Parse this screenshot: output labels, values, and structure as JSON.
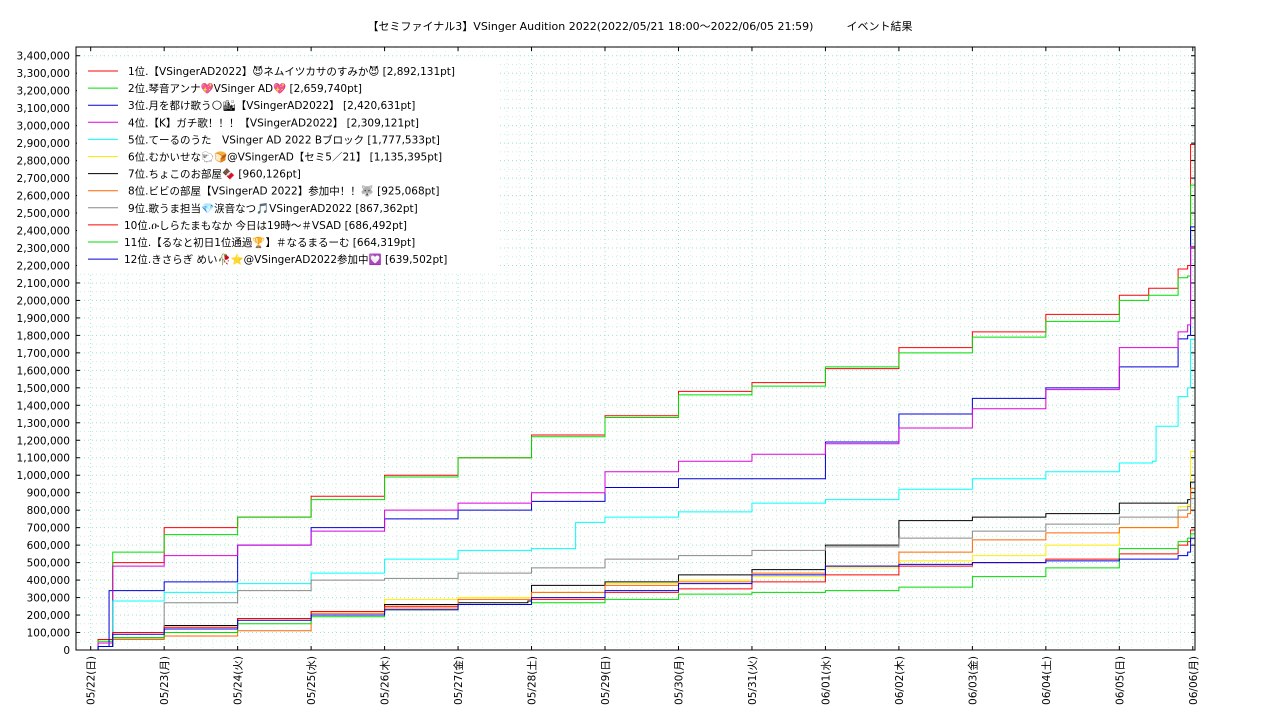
{
  "title": "【セミファイナル3】VSinger Audition 2022(2022/05/21 18:00～2022/06/05 21:59)　　　イベント結果",
  "chart_data": {
    "type": "line",
    "title": "【セミファイナル3】VSinger Audition 2022(2022/05/21 18:00～2022/06/05 21:59)　　　イベント結果",
    "xlabel": "",
    "ylabel": "",
    "ylim": [
      0,
      3450000
    ],
    "xlim": [
      -0.2,
      15.03
    ],
    "grid": true,
    "legend_position": "top-left",
    "x_ticks": [
      "05/22(日)",
      "05/23(月)",
      "05/24(火)",
      "05/25(水)",
      "05/26(木)",
      "05/27(金)",
      "05/28(土)",
      "05/29(日)",
      "05/30(月)",
      "05/31(火)",
      "06/01(水)",
      "06/02(木)",
      "06/03(金)",
      "06/04(土)",
      "06/05(日)",
      "06/06(月)"
    ],
    "y_ticks": [
      "0",
      "100,000",
      "200,000",
      "300,000",
      "400,000",
      "500,000",
      "600,000",
      "700,000",
      "800,000",
      "900,000",
      "1,000,000",
      "1,100,000",
      "1,200,000",
      "1,300,000",
      "1,400,000",
      "1,500,000",
      "1,600,000",
      "1,700,000",
      "1,800,000",
      "1,900,000",
      "2,000,000",
      "2,100,000",
      "2,200,000",
      "2,300,000",
      "2,400,000",
      "2,500,000",
      "2,600,000",
      "2,700,000",
      "2,800,000",
      "2,900,000",
      "3,000,000",
      "3,100,000",
      "3,200,000",
      "3,300,000",
      "3,400,000"
    ],
    "series": [
      {
        "name": "1位.【VSingerAD2022】😈ネムイツカサのすみか😈 [2,892,131pt]",
        "color": "#ff0000",
        "x": [
          -0.2,
          0.1,
          0.3,
          1,
          2,
          3,
          4,
          5,
          6,
          7,
          8,
          9,
          10,
          11,
          12,
          13,
          14,
          14.4,
          14.8,
          14.93,
          14.97,
          15.03
        ],
        "y": [
          0,
          60000,
          500000,
          700000,
          760000,
          880000,
          1000000,
          1100000,
          1230000,
          1340000,
          1480000,
          1530000,
          1610000,
          1730000,
          1820000,
          1920000,
          2030000,
          2070000,
          2180000,
          2200000,
          2892131,
          2892131
        ]
      },
      {
        "name": "2位.琴音アンナ💖VSinger AD💖 [2,659,740pt]",
        "color": "#00dd00",
        "x": [
          -0.2,
          0.1,
          0.3,
          1,
          2,
          3,
          4,
          5,
          6,
          7,
          8,
          9,
          10,
          11,
          12,
          13,
          14,
          14.4,
          14.8,
          14.93,
          14.97,
          15.03
        ],
        "y": [
          0,
          50000,
          560000,
          660000,
          760000,
          860000,
          990000,
          1100000,
          1220000,
          1330000,
          1460000,
          1510000,
          1620000,
          1700000,
          1790000,
          1880000,
          2000000,
          2030000,
          2130000,
          2140000,
          2659740,
          2659740
        ]
      },
      {
        "name": "3位.月を都け歌う🌕🏙【VSingerAD2022】 [2,420,631pt]",
        "color": "#0000dd",
        "x": [
          -0.2,
          0.1,
          0.25,
          1,
          2,
          3,
          4,
          5,
          6,
          7,
          8,
          9,
          9.95,
          10,
          11,
          12,
          13,
          13.9,
          14,
          14.8,
          14.93,
          14.97,
          15.03
        ],
        "y": [
          0,
          20000,
          340000,
          390000,
          600000,
          700000,
          750000,
          800000,
          850000,
          930000,
          980000,
          980000,
          980000,
          1190000,
          1350000,
          1440000,
          1500000,
          1500000,
          1620000,
          1780000,
          1800000,
          2420631,
          2420631
        ]
      },
      {
        "name": "4位.【K】ガチ歌！！！【VSingerAD2022】 [2,309,121pt]",
        "color": "#dd00dd",
        "x": [
          -0.2,
          0.1,
          0.3,
          1,
          2,
          3,
          4,
          5,
          6,
          6.05,
          7,
          8,
          9,
          10,
          11,
          12,
          13,
          14,
          14.8,
          14.93,
          14.97,
          15.03
        ],
        "y": [
          0,
          40000,
          480000,
          540000,
          600000,
          680000,
          800000,
          840000,
          900000,
          900000,
          1020000,
          1080000,
          1120000,
          1180000,
          1270000,
          1380000,
          1490000,
          1730000,
          1820000,
          1860000,
          2309121,
          2309121
        ]
      },
      {
        "name": "5位.てーるのうた　VSinger AD 2022 Bブロック [1,777,533pt]",
        "color": "#00ffff",
        "x": [
          -0.2,
          0.1,
          0.3,
          1,
          2,
          3,
          4,
          5,
          6,
          6.6,
          7,
          8,
          9,
          10,
          11,
          12,
          13,
          14,
          14.45,
          14.5,
          14.8,
          14.93,
          14.97,
          15.03
        ],
        "y": [
          0,
          20000,
          280000,
          330000,
          380000,
          440000,
          520000,
          570000,
          580000,
          730000,
          760000,
          790000,
          840000,
          860000,
          920000,
          980000,
          1020000,
          1070000,
          1080000,
          1280000,
          1450000,
          1500000,
          1777533,
          1777533
        ]
      },
      {
        "name": "6位.むかいせな🐑🍞@VSingerAD【セミ5／21】 [1,135,395pt]",
        "color": "#ffee00",
        "x": [
          -0.2,
          0.1,
          0.3,
          1,
          2,
          3,
          4,
          5,
          6,
          7,
          8,
          9,
          10,
          11,
          12,
          13,
          14,
          14.8,
          14.93,
          14.97,
          15.03
        ],
        "y": [
          0,
          20000,
          60000,
          100000,
          170000,
          220000,
          290000,
          300000,
          330000,
          380000,
          400000,
          420000,
          470000,
          510000,
          540000,
          600000,
          700000,
          820000,
          830000,
          1135395,
          1135395
        ]
      },
      {
        "name": "7位.ちょこのお部屋🍫 [960,126pt]",
        "color": "#000000",
        "x": [
          -0.2,
          0.1,
          0.3,
          1,
          2,
          3,
          4,
          5,
          5.95,
          6,
          7,
          8,
          9,
          9.95,
          10,
          11,
          12,
          13,
          14,
          14.8,
          14.93,
          14.97,
          15.03
        ],
        "y": [
          0,
          20000,
          70000,
          140000,
          180000,
          220000,
          260000,
          270000,
          280000,
          370000,
          390000,
          430000,
          460000,
          460000,
          600000,
          740000,
          760000,
          780000,
          840000,
          840000,
          860000,
          960126,
          960126
        ]
      },
      {
        "name": "8位.ビビの部屋【VSingerAD 2022】参加中！！🐺 [925,068pt]",
        "color": "#ff6600",
        "x": [
          -0.2,
          0.1,
          0.3,
          1,
          2,
          3,
          4,
          5,
          6,
          7,
          8,
          9,
          10,
          11,
          12,
          13,
          14,
          14.8,
          14.93,
          14.97,
          15.03
        ],
        "y": [
          0,
          20000,
          60000,
          80000,
          110000,
          210000,
          240000,
          290000,
          330000,
          370000,
          390000,
          440000,
          480000,
          560000,
          630000,
          670000,
          700000,
          760000,
          780000,
          925068,
          925068
        ]
      },
      {
        "name": "9位.歌うま担当💎涙音なつ🎵VSingerAD2022 [867,362pt]",
        "color": "#888888",
        "x": [
          -0.2,
          0.1,
          0.3,
          1,
          2,
          3,
          4,
          5,
          6,
          7,
          8,
          9,
          10,
          11,
          12,
          13,
          14,
          14.8,
          14.93,
          14.97,
          15.03
        ],
        "y": [
          0,
          20000,
          100000,
          270000,
          340000,
          400000,
          410000,
          440000,
          470000,
          520000,
          540000,
          570000,
          590000,
          640000,
          680000,
          720000,
          760000,
          800000,
          820000,
          867362,
          867362
        ]
      },
      {
        "name": "10位.ዑしらたまもなか 今日は19時～＃VSAD [686,492pt]",
        "color": "#ff0000",
        "x": [
          -0.2,
          0.1,
          0.3,
          1,
          2,
          3,
          4,
          5,
          6,
          7,
          8,
          9,
          10,
          11,
          12,
          13,
          14,
          14.8,
          14.93,
          14.97,
          15.03
        ],
        "y": [
          0,
          20000,
          100000,
          130000,
          180000,
          220000,
          250000,
          260000,
          290000,
          330000,
          350000,
          390000,
          430000,
          480000,
          500000,
          520000,
          550000,
          600000,
          620000,
          686492,
          686492
        ]
      },
      {
        "name": "11位.【るなと初日1位通過🏆】＃なるまるーむ [664,319pt]",
        "color": "#00dd00",
        "x": [
          -0.2,
          0.1,
          0.3,
          1,
          2,
          3,
          4,
          5,
          6,
          7,
          8,
          9,
          10,
          11,
          12,
          13,
          14,
          14.8,
          14.93,
          14.97,
          15.03
        ],
        "y": [
          0,
          20000,
          70000,
          100000,
          150000,
          190000,
          230000,
          260000,
          270000,
          290000,
          320000,
          330000,
          340000,
          360000,
          420000,
          470000,
          580000,
          620000,
          640000,
          664319,
          664319
        ]
      },
      {
        "name": "12位.きさらぎ めい🥀⭐@VSingerAD2022参加中💟 [639,502pt]",
        "color": "#0000dd",
        "x": [
          -0.2,
          0.1,
          0.3,
          1,
          2,
          3,
          4,
          5,
          6,
          7,
          8,
          9,
          10,
          11,
          12,
          13,
          14,
          14.8,
          14.93,
          14.97,
          15.03
        ],
        "y": [
          0,
          20000,
          90000,
          120000,
          170000,
          200000,
          230000,
          260000,
          300000,
          340000,
          380000,
          430000,
          480000,
          490000,
          500000,
          510000,
          520000,
          540000,
          560000,
          639502,
          639502
        ]
      }
    ]
  }
}
